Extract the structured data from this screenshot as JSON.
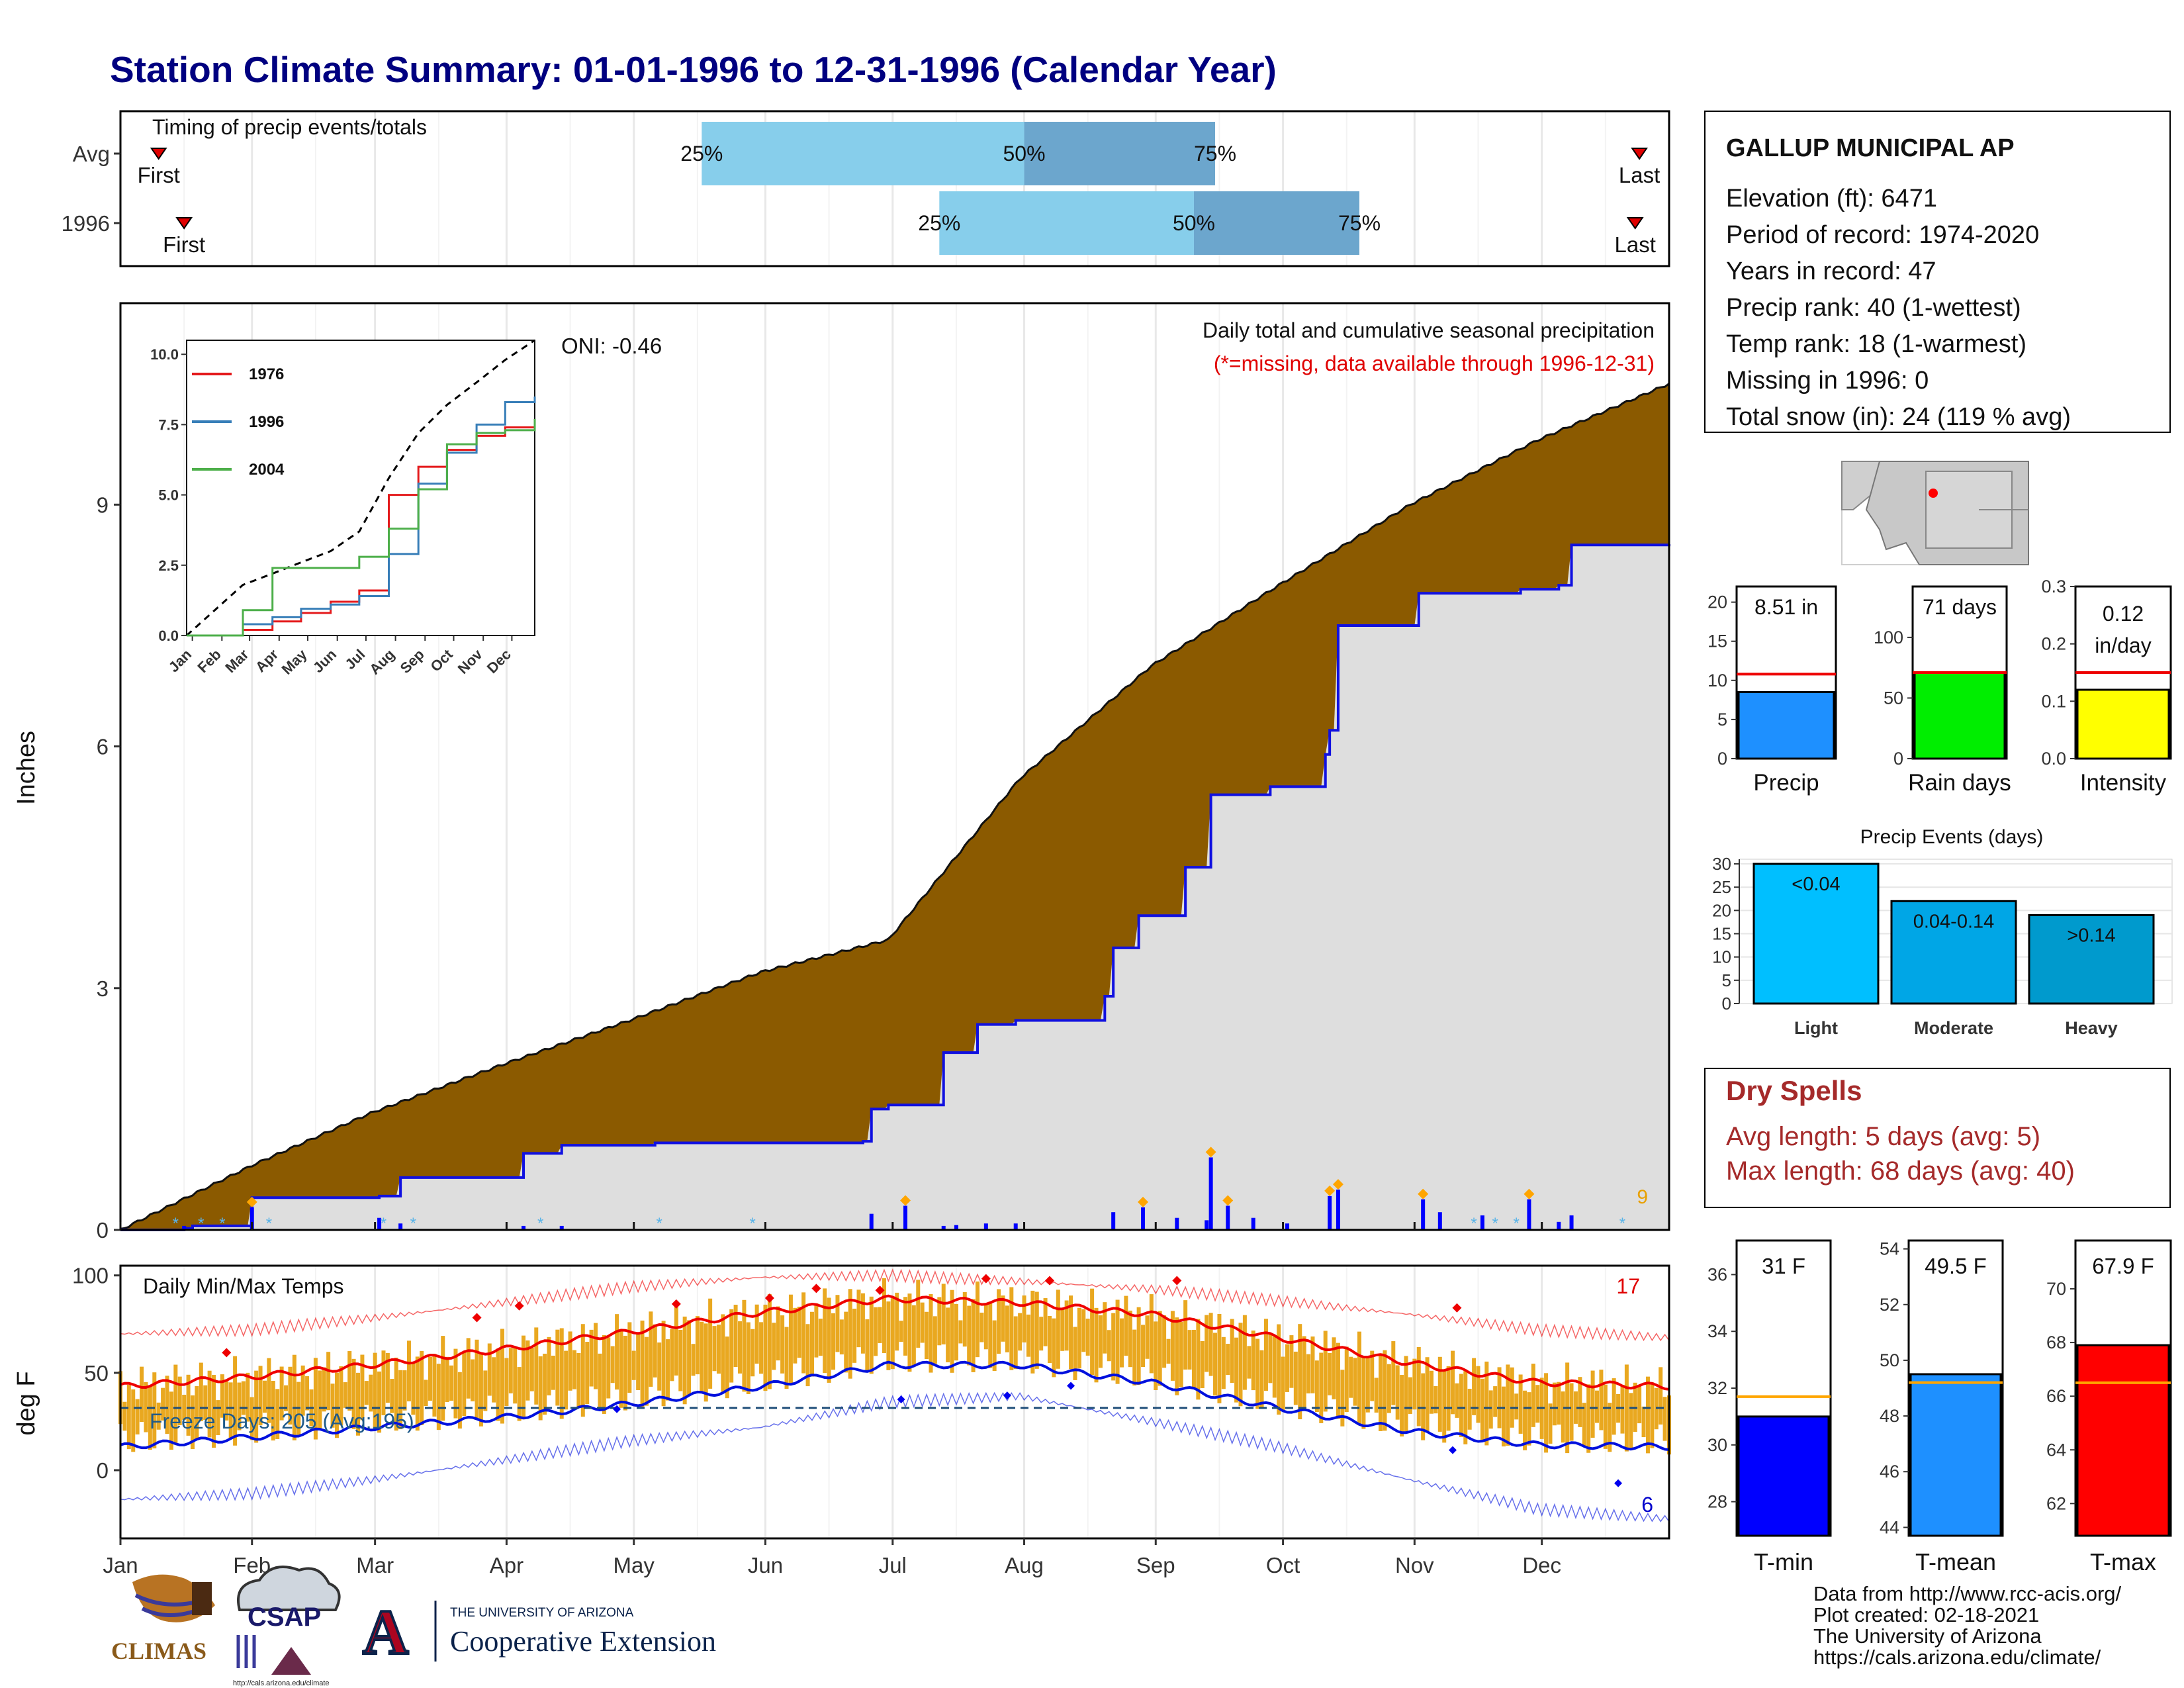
{
  "title": "Station Climate Summary: 01-01-1996 to 12-31-1996 (Calendar Year)",
  "timing": {
    "label": "Timing of precip events/totals",
    "rows": [
      {
        "name": "Avg",
        "first": "First",
        "last": "Last",
        "q25": "25%",
        "q50": "50%",
        "q75": "75%",
        "first_day": 10,
        "q25_day": 138,
        "q50_day": 214,
        "q75_day": 259,
        "last_day": 359
      },
      {
        "name": "1996",
        "first": "First",
        "last": "Last",
        "q25": "25%",
        "q50": "50%",
        "q75": "75%",
        "first_day": 16,
        "q25_day": 194,
        "q50_day": 254,
        "q75_day": 293,
        "last_day": 358
      }
    ]
  },
  "precip": {
    "ylabel": "Inches",
    "yticks": [
      "0",
      "3",
      "6",
      "9"
    ],
    "title": "Daily total and cumulative seasonal precipitation",
    "subtitle": "(*=missing, data available through 1996-12-31)",
    "oni": "ONI: -0.46",
    "corner_count": "9",
    "inset": {
      "yticks": [
        "0.0",
        "2.5",
        "5.0",
        "7.5",
        "10.0"
      ],
      "months": [
        "Jan",
        "Feb",
        "Mar",
        "Apr",
        "May",
        "Jun",
        "Jul",
        "Aug",
        "Sep",
        "Oct",
        "Nov",
        "Dec"
      ],
      "legend": [
        "1976",
        "1996",
        "2004"
      ]
    }
  },
  "temp": {
    "ylabel": "deg F",
    "title": "Daily Min/Max Temps",
    "yticks": [
      "0",
      "50",
      "100"
    ],
    "freeze": "Freeze Days: 205 (Avg:195)",
    "hot_count": "17",
    "cold_count": "6"
  },
  "months": [
    "Jan",
    "Feb",
    "Mar",
    "Apr",
    "May",
    "Jun",
    "Jul",
    "Aug",
    "Sep",
    "Oct",
    "Nov",
    "Dec"
  ],
  "station": {
    "name": "GALLUP MUNICIPAL AP",
    "lines": [
      "Elevation (ft): 6471",
      "Period of record: 1974-2020",
      "Years in record: 47",
      "Precip rank: 40 (1-wettest)",
      "Temp rank: 18 (1-warmest)",
      "Missing in 1996: 0",
      "Total snow (in): 24 (119 % avg)"
    ]
  },
  "mini_bars": [
    {
      "label": "Precip",
      "value_text": "8.51 in",
      "yticks": [
        "0",
        "5",
        "10",
        "15",
        "20"
      ]
    },
    {
      "label": "Rain days",
      "value_text": "71 days",
      "yticks": [
        "0",
        "50",
        "100"
      ]
    },
    {
      "label": "Intensity",
      "value_text_1": "0.12",
      "value_text_2": "in/day",
      "yticks": [
        "0.0",
        "0.1",
        "0.2",
        "0.3"
      ]
    }
  ],
  "events": {
    "title": "Precip Events (days)",
    "yticks": [
      "0",
      "5",
      "10",
      "15",
      "20",
      "25",
      "30"
    ],
    "bars": [
      {
        "category": "Light",
        "label": "<0.04"
      },
      {
        "category": "Moderate",
        "label": "0.04-0.14"
      },
      {
        "category": "Heavy",
        "label": ">0.14"
      }
    ]
  },
  "dry_spells": {
    "title": "Dry Spells",
    "line1": "Avg length: 5 days (avg: 5)",
    "line2": "Max length: 68 days (avg: 40)"
  },
  "temp_bars": [
    {
      "label": "T-min",
      "value_text": "31 F",
      "yticks": [
        "28",
        "30",
        "32",
        "34",
        "36"
      ]
    },
    {
      "label": "T-mean",
      "value_text": "49.5 F",
      "yticks": [
        "44",
        "46",
        "48",
        "50",
        "52",
        "54"
      ]
    },
    {
      "label": "T-max",
      "value_text": "67.9 F",
      "yticks": [
        "62",
        "64",
        "66",
        "68",
        "70"
      ]
    }
  ],
  "logos": {
    "climas": "CLIMAS",
    "csap": "CSAP",
    "csap_url": "http://cals.arizona.edu/climate",
    "ua_top": "THE UNIVERSITY OF ARIZONA",
    "ua_main": "Cooperative Extension",
    "ua_letter": "A"
  },
  "footer": [
    "Data from http://www.rcc-acis.org/",
    "Plot created: 02-18-2021",
    "The University of Arizona",
    "https://cals.arizona.edu/climate/"
  ],
  "chart_data": [
    {
      "type": "area",
      "title": "Daily total and cumulative seasonal precipitation",
      "ylabel": "Inches",
      "ylim": [
        0,
        11.5
      ],
      "series": [
        {
          "name": "",
          "x_day": [
            1,
            32,
            60,
            91,
            121,
            152,
            182,
            213,
            244,
            274,
            305,
            335,
            366
          ],
          "values": [
            0,
            0.8,
            1.45,
            2.05,
            2.6,
            3.2,
            3.6,
            5.6,
            7.0,
            8.0,
            9.0,
            9.8,
            10.5
          ]
        },
        {
          "name": "1996",
          "x_day": [
            1,
            16,
            18,
            32,
            62,
            67,
            96,
            105,
            127,
            150,
            176,
            178,
            182,
            195,
            203,
            212,
            225,
            233,
            235,
            241,
            252,
            258,
            272,
            285,
            286,
            288,
            307,
            331,
            340,
            343,
            366
          ],
          "values": [
            0,
            0.02,
            0.05,
            0.4,
            0.42,
            0.65,
            0.95,
            1.05,
            1.08,
            1.08,
            1.1,
            1.5,
            1.55,
            2.2,
            2.55,
            2.6,
            2.6,
            2.9,
            3.5,
            3.9,
            4.5,
            5.4,
            5.5,
            5.9,
            6.2,
            7.5,
            7.9,
            7.95,
            8.0,
            8.5,
            8.51
          ]
        }
      ],
      "daily_bars": [
        [
          16,
          0.05
        ],
        [
          32,
          0.28
        ],
        [
          62,
          0.15
        ],
        [
          67,
          0.08
        ],
        [
          96,
          0.05
        ],
        [
          105,
          0.05
        ],
        [
          178,
          0.2
        ],
        [
          186,
          0.3
        ],
        [
          195,
          0.05
        ],
        [
          198,
          0.06
        ],
        [
          205,
          0.08
        ],
        [
          212,
          0.08
        ],
        [
          235,
          0.22
        ],
        [
          242,
          0.28
        ],
        [
          250,
          0.15
        ],
        [
          257,
          0.12
        ],
        [
          258,
          0.9
        ],
        [
          262,
          0.3
        ],
        [
          268,
          0.15
        ],
        [
          276,
          0.08
        ],
        [
          286,
          0.42
        ],
        [
          288,
          0.5
        ],
        [
          308,
          0.38
        ],
        [
          312,
          0.22
        ],
        [
          322,
          0.18
        ],
        [
          333,
          0.38
        ],
        [
          340,
          0.1
        ],
        [
          343,
          0.18
        ]
      ]
    },
    {
      "type": "line",
      "title": "",
      "legend": [
        "1976",
        "1996",
        "2004"
      ],
      "ylim": [
        0,
        10.5
      ],
      "series": [
        {
          "name": "avg",
          "x_day": [
            1,
            60,
            91,
            121,
            152,
            182,
            213,
            244,
            274,
            305,
            335,
            366
          ],
          "values": [
            0,
            1.8,
            2.2,
            2.6,
            3.0,
            3.7,
            5.6,
            7.2,
            8.2,
            9.0,
            9.8,
            10.5
          ]
        },
        {
          "name": "1976",
          "x_day": [
            1,
            60,
            91,
            121,
            152,
            182,
            213,
            244,
            274,
            305,
            335,
            366
          ],
          "values": [
            0,
            0.2,
            0.5,
            0.8,
            1.2,
            1.6,
            5.0,
            6.0,
            6.6,
            7.1,
            7.4,
            7.5
          ]
        },
        {
          "name": "1996",
          "x_day": [
            1,
            60,
            91,
            121,
            152,
            182,
            213,
            244,
            274,
            305,
            335,
            366
          ],
          "values": [
            0,
            0.4,
            0.65,
            0.95,
            1.1,
            1.4,
            2.9,
            5.4,
            6.5,
            7.5,
            8.3,
            8.5
          ]
        },
        {
          "name": "2004",
          "x_day": [
            1,
            60,
            91,
            121,
            152,
            182,
            213,
            244,
            274,
            305,
            335,
            366
          ],
          "values": [
            0,
            0.9,
            2.4,
            2.4,
            2.4,
            2.8,
            3.8,
            5.2,
            6.8,
            7.2,
            7.3,
            7.7
          ]
        }
      ]
    },
    {
      "type": "line",
      "title": "Daily Min/Max Temps",
      "ylabel": "deg F",
      "ylim": [
        -35,
        105
      ],
      "series": [
        {
          "name": "record high",
          "x_day": [
            1,
            32,
            60,
            91,
            121,
            152,
            182,
            213,
            244,
            274,
            305,
            335,
            366
          ],
          "values": [
            70,
            72,
            78,
            86,
            94,
            99,
            100,
            97,
            93,
            87,
            80,
            72,
            68
          ]
        },
        {
          "name": "normal high",
          "x_day": [
            1,
            32,
            60,
            91,
            121,
            152,
            182,
            213,
            244,
            274,
            305,
            335,
            366
          ],
          "values": [
            43,
            48,
            54,
            62,
            71,
            81,
            88,
            86,
            80,
            68,
            55,
            45,
            43
          ]
        },
        {
          "name": "normal low",
          "x_day": [
            1,
            32,
            60,
            91,
            121,
            152,
            182,
            213,
            244,
            274,
            305,
            335,
            366
          ],
          "values": [
            12,
            17,
            22,
            27,
            34,
            43,
            54,
            54,
            45,
            32,
            20,
            13,
            12
          ]
        },
        {
          "name": "record low",
          "x_day": [
            1,
            32,
            60,
            91,
            121,
            152,
            182,
            213,
            244,
            274,
            305,
            335,
            366
          ],
          "values": [
            -15,
            -12,
            -5,
            5,
            15,
            22,
            35,
            38,
            25,
            12,
            -5,
            -20,
            -25
          ]
        }
      ],
      "freeze_line": 32
    },
    {
      "type": "bar",
      "categories": [
        "Precip",
        "Rain days",
        "Intensity"
      ],
      "values": [
        8.51,
        71,
        0.12
      ],
      "averages": [
        10.8,
        71,
        0.15
      ],
      "ylims": [
        [
          0,
          22
        ],
        [
          0,
          142
        ],
        [
          0,
          0.3
        ]
      ]
    },
    {
      "type": "bar",
      "title": "Precip Events (days)",
      "categories": [
        "Light",
        "Moderate",
        "Heavy"
      ],
      "values": [
        30,
        22,
        19
      ],
      "ylim": [
        0,
        31
      ]
    },
    {
      "type": "bar",
      "categories": [
        "T-min",
        "T-mean",
        "T-max"
      ],
      "values": [
        31,
        49.5,
        67.9
      ],
      "averages": [
        31.7,
        49.2,
        66.5
      ],
      "ylims": [
        [
          26.8,
          37.2
        ],
        [
          43.7,
          54.3
        ],
        [
          60.8,
          71.8
        ]
      ]
    }
  ]
}
